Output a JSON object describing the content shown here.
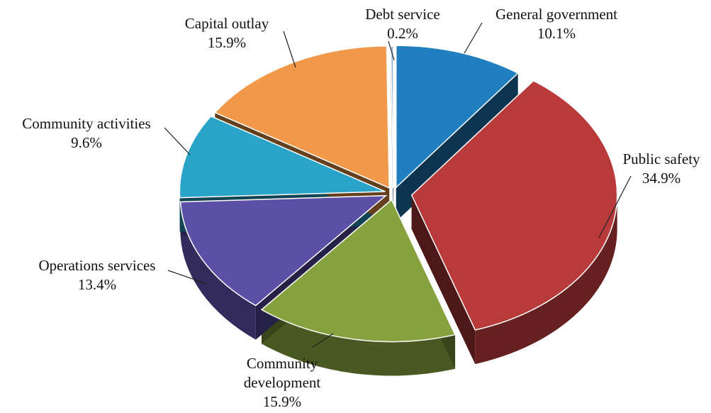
{
  "chart_data": {
    "type": "pie",
    "style": "3d-exploded",
    "slices": [
      {
        "label": "General government",
        "value": 10.1,
        "value_label": "10.1%",
        "color": "#1f7fbf"
      },
      {
        "label": "Public safety",
        "value": 34.9,
        "value_label": "34.9%",
        "color": "#b93a3a"
      },
      {
        "label": "Community development",
        "label_lines": [
          "Community",
          "development"
        ],
        "value": 15.9,
        "value_label": "15.9%",
        "color": "#86a23e"
      },
      {
        "label": "Operations services",
        "value": 13.4,
        "value_label": "13.4%",
        "color": "#5b4fa6"
      },
      {
        "label": "Community activities",
        "value": 9.6,
        "value_label": "9.6%",
        "color": "#2aa3c8"
      },
      {
        "label": "Capital outlay",
        "value": 15.9,
        "value_label": "15.9%",
        "color": "#f0994a"
      },
      {
        "label": "Debt service",
        "value": 0.2,
        "value_label": "0.2%",
        "color": "#8faed0"
      }
    ],
    "legend": "none"
  }
}
